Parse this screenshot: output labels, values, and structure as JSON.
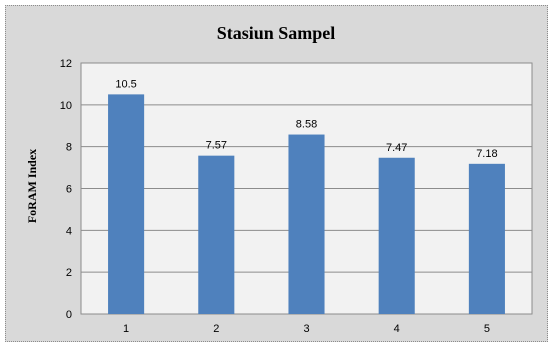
{
  "chart_data": {
    "type": "bar",
    "title": "Stasiun  Sampel",
    "xlabel": "",
    "ylabel": "FoRAM Index",
    "categories": [
      "1",
      "2",
      "3",
      "4",
      "5"
    ],
    "values": [
      10.5,
      7.57,
      8.58,
      7.47,
      7.18
    ],
    "data_labels": [
      "10.5",
      "7.57",
      "8.58",
      "7.47",
      "7.18"
    ],
    "ylim": [
      0,
      12
    ],
    "yticks": [
      "0",
      "2",
      "4",
      "6",
      "8",
      "10",
      "12"
    ],
    "grid": true,
    "legend": "none",
    "colors": {
      "bar": "#4f81bd",
      "plot_background": "#f2f2f2",
      "chart_background": "#d9d9d9",
      "grid": "#8c8c8c"
    }
  }
}
